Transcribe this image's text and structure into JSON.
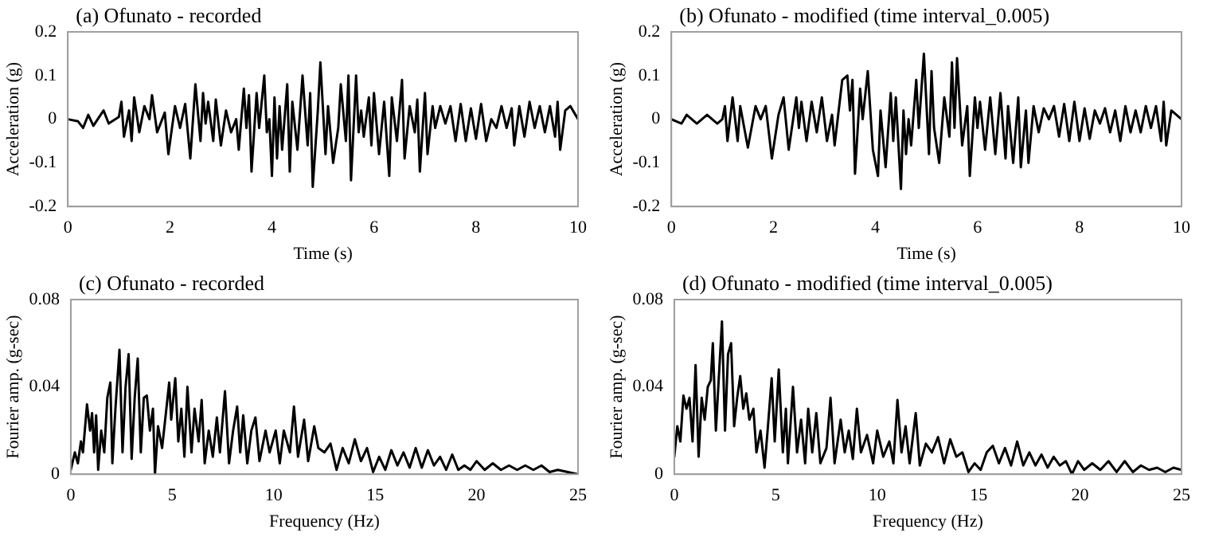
{
  "chart_data": [
    {
      "type": "line",
      "title": "(a) Ofunato - recorded",
      "xlabel": "Time (s)",
      "ylabel": "Acceleration (g)",
      "xlim": [
        0,
        10
      ],
      "xticks": [
        0,
        2,
        4,
        6,
        8,
        10
      ],
      "ylim": [
        -0.2,
        0.2
      ],
      "yticks": [
        -0.2,
        -0.1,
        0,
        0.1,
        0.2
      ],
      "x": [
        0,
        0.2,
        0.3,
        0.4,
        0.5,
        0.7,
        0.8,
        1.0,
        1.05,
        1.1,
        1.2,
        1.25,
        1.3,
        1.4,
        1.5,
        1.6,
        1.65,
        1.75,
        1.9,
        1.97,
        2.1,
        2.2,
        2.3,
        2.4,
        2.5,
        2.6,
        2.65,
        2.7,
        2.75,
        2.85,
        2.9,
        3.0,
        3.1,
        3.2,
        3.3,
        3.35,
        3.45,
        3.5,
        3.55,
        3.6,
        3.7,
        3.75,
        3.85,
        3.9,
        3.95,
        4.0,
        4.05,
        4.1,
        4.15,
        4.2,
        4.3,
        4.35,
        4.4,
        4.5,
        4.6,
        4.7,
        4.75,
        4.8,
        4.9,
        4.95,
        5.05,
        5.1,
        5.2,
        5.3,
        5.35,
        5.45,
        5.5,
        5.55,
        5.65,
        5.7,
        5.75,
        5.8,
        5.9,
        5.95,
        6.0,
        6.1,
        6.2,
        6.3,
        6.35,
        6.45,
        6.55,
        6.6,
        6.7,
        6.8,
        6.85,
        6.9,
        7.0,
        7.05,
        7.15,
        7.2,
        7.3,
        7.4,
        7.5,
        7.6,
        7.7,
        7.8,
        7.9,
        8.0,
        8.1,
        8.2,
        8.3,
        8.4,
        8.5,
        8.6,
        8.7,
        8.75,
        8.85,
        8.95,
        9.05,
        9.15,
        9.25,
        9.35,
        9.45,
        9.55,
        9.6,
        9.65,
        9.75,
        9.85,
        9.95,
        10
      ],
      "series": [
        {
          "color": "#000000",
          "values": [
            0,
            -0.005,
            -0.02,
            0.01,
            -0.015,
            0.02,
            -0.01,
            0.005,
            0.04,
            -0.04,
            0.02,
            -0.05,
            0.05,
            -0.03,
            0.03,
            0.0,
            0.055,
            -0.03,
            0.015,
            -0.08,
            0.03,
            -0.02,
            0.035,
            -0.09,
            0.08,
            -0.05,
            0.06,
            -0.01,
            0.04,
            -0.05,
            0.045,
            -0.06,
            0.02,
            -0.03,
            0.0,
            -0.07,
            0.07,
            -0.02,
            0.055,
            -0.12,
            0.06,
            -0.02,
            0.1,
            -0.03,
            0.0,
            -0.13,
            0.05,
            -0.09,
            0.03,
            -0.07,
            0.08,
            -0.12,
            0.04,
            -0.07,
            0.1,
            -0.06,
            0.06,
            -0.155,
            0.02,
            0.13,
            -0.08,
            0.03,
            -0.1,
            -0.02,
            0.08,
            -0.05,
            0.1,
            -0.14,
            0.1,
            -0.03,
            0.02,
            -0.04,
            0.05,
            -0.06,
            0.06,
            -0.08,
            0.04,
            -0.13,
            0.05,
            -0.05,
            0.09,
            -0.09,
            0.03,
            -0.03,
            0.045,
            -0.12,
            0.06,
            -0.08,
            0.03,
            -0.02,
            0.03,
            -0.01,
            0.03,
            -0.05,
            0.035,
            -0.05,
            0.025,
            -0.045,
            0.035,
            -0.05,
            0.0,
            -0.02,
            0.03,
            -0.02,
            0.025,
            -0.06,
            0.03,
            -0.04,
            0.04,
            -0.02,
            0.03,
            -0.03,
            0.03,
            -0.04,
            0.04,
            -0.07,
            0.02,
            0.03,
            0.01,
            0
          ]
        }
      ]
    },
    {
      "type": "line",
      "title": "(b) Ofunato - modified (time interval_0.005)",
      "xlabel": "Time (s)",
      "ylabel": "Acceleration (g)",
      "xlim": [
        0,
        10
      ],
      "xticks": [
        0,
        2,
        4,
        6,
        8,
        10
      ],
      "ylim": [
        -0.2,
        0.2
      ],
      "yticks": [
        -0.2,
        -0.1,
        0,
        0.1,
        0.2
      ],
      "x": [
        0,
        0.2,
        0.3,
        0.5,
        0.7,
        0.9,
        1.0,
        1.05,
        1.1,
        1.2,
        1.3,
        1.35,
        1.5,
        1.65,
        1.75,
        1.85,
        1.97,
        2.1,
        2.2,
        2.3,
        2.45,
        2.5,
        2.55,
        2.65,
        2.75,
        2.85,
        2.95,
        3.05,
        3.15,
        3.2,
        3.35,
        3.45,
        3.5,
        3.55,
        3.6,
        3.7,
        3.75,
        3.85,
        3.95,
        4.05,
        4.1,
        4.2,
        4.3,
        4.35,
        4.4,
        4.5,
        4.55,
        4.6,
        4.65,
        4.7,
        4.8,
        4.85,
        4.95,
        5.05,
        5.1,
        5.15,
        5.25,
        5.35,
        5.45,
        5.5,
        5.55,
        5.6,
        5.7,
        5.8,
        5.85,
        5.95,
        6.0,
        6.05,
        6.15,
        6.25,
        6.35,
        6.45,
        6.55,
        6.6,
        6.7,
        6.8,
        6.85,
        6.95,
        7.0,
        7.1,
        7.2,
        7.3,
        7.4,
        7.5,
        7.6,
        7.7,
        7.8,
        7.9,
        8.0,
        8.1,
        8.2,
        8.3,
        8.4,
        8.5,
        8.6,
        8.7,
        8.8,
        8.9,
        9.0,
        9.1,
        9.2,
        9.3,
        9.4,
        9.5,
        9.6,
        9.65,
        9.7,
        9.8,
        9.9,
        10
      ],
      "series": [
        {
          "color": "#000000",
          "values": [
            0,
            -0.01,
            0.01,
            -0.01,
            0.01,
            -0.01,
            0.0,
            0.03,
            -0.05,
            0.05,
            -0.05,
            0.03,
            -0.065,
            0.03,
            0.0,
            0.03,
            -0.09,
            0.01,
            0.05,
            -0.07,
            0.05,
            -0.02,
            0.04,
            -0.05,
            0.04,
            -0.03,
            0.05,
            -0.05,
            0.01,
            -0.06,
            0.09,
            0.1,
            0.02,
            0.09,
            -0.125,
            0.07,
            0.0,
            0.11,
            -0.07,
            -0.13,
            0.02,
            -0.11,
            0.06,
            -0.05,
            0.05,
            -0.16,
            0.02,
            -0.08,
            0.0,
            -0.06,
            0.09,
            -0.02,
            0.15,
            -0.08,
            0.11,
            -0.02,
            -0.1,
            0.05,
            -0.04,
            0.13,
            -0.02,
            0.14,
            -0.06,
            0.03,
            -0.13,
            0.05,
            -0.02,
            0.04,
            -0.07,
            0.05,
            -0.08,
            0.06,
            -0.09,
            0.03,
            -0.1,
            0.05,
            -0.11,
            0.02,
            -0.1,
            0.03,
            -0.03,
            0.025,
            0.0,
            0.03,
            -0.04,
            0.035,
            -0.05,
            0.04,
            -0.05,
            0.025,
            -0.045,
            0.02,
            -0.01,
            0.025,
            -0.03,
            0.02,
            -0.05,
            0.03,
            -0.03,
            0.02,
            -0.03,
            0.03,
            -0.02,
            0.03,
            -0.05,
            0.04,
            -0.06,
            0.02,
            0.01,
            0
          ]
        }
      ]
    },
    {
      "type": "line",
      "title": "(c) Ofunato - recorded",
      "xlabel": "Frequency (Hz)",
      "ylabel": "Fourier amp. (g-sec)",
      "xlim": [
        0,
        25
      ],
      "xticks": [
        0,
        5,
        10,
        15,
        20,
        25
      ],
      "ylim": [
        0,
        0.08
      ],
      "yticks": [
        0,
        0.04,
        0.08
      ],
      "x": [
        0,
        0.2,
        0.35,
        0.5,
        0.6,
        0.8,
        0.95,
        1.05,
        1.15,
        1.25,
        1.35,
        1.5,
        1.65,
        1.8,
        1.95,
        2.05,
        2.2,
        2.4,
        2.55,
        2.7,
        2.85,
        3.0,
        3.15,
        3.3,
        3.45,
        3.6,
        3.75,
        3.9,
        4.05,
        4.15,
        4.3,
        4.5,
        4.7,
        4.85,
        4.95,
        5.15,
        5.3,
        5.45,
        5.6,
        5.75,
        5.95,
        6.1,
        6.3,
        6.45,
        6.6,
        6.8,
        7.0,
        7.2,
        7.35,
        7.6,
        7.8,
        8.0,
        8.2,
        8.35,
        8.5,
        8.7,
        8.9,
        9.1,
        9.3,
        9.6,
        9.8,
        10.1,
        10.3,
        10.5,
        10.8,
        11.0,
        11.2,
        11.5,
        11.7,
        12.0,
        12.2,
        12.5,
        12.8,
        13.1,
        13.4,
        13.7,
        14.0,
        14.3,
        14.6,
        14.9,
        15.2,
        15.5,
        15.8,
        16.1,
        16.4,
        16.7,
        17.0,
        17.3,
        17.6,
        17.9,
        18.2,
        18.5,
        18.8,
        19.1,
        19.4,
        19.7,
        20.0,
        20.4,
        20.8,
        21.2,
        21.6,
        22.0,
        22.4,
        22.8,
        23.2,
        23.6,
        24.0,
        24.5,
        25
      ],
      "series": [
        {
          "color": "#000000",
          "values": [
            0.002,
            0.01,
            0.005,
            0.015,
            0.01,
            0.032,
            0.02,
            0.028,
            0.01,
            0.027,
            0.002,
            0.02,
            0.01,
            0.035,
            0.042,
            0.005,
            0.03,
            0.057,
            0.01,
            0.04,
            0.055,
            0.007,
            0.035,
            0.053,
            0.01,
            0.035,
            0.036,
            0.02,
            0.03,
            0.0,
            0.022,
            0.012,
            0.029,
            0.042,
            0.025,
            0.044,
            0.015,
            0.03,
            0.008,
            0.04,
            0.01,
            0.03,
            0.015,
            0.034,
            0.005,
            0.02,
            0.008,
            0.026,
            0.01,
            0.038,
            0.005,
            0.02,
            0.031,
            0.01,
            0.027,
            0.005,
            0.02,
            0.026,
            0.006,
            0.02,
            0.01,
            0.02,
            0.005,
            0.02,
            0.01,
            0.031,
            0.008,
            0.025,
            0.006,
            0.022,
            0.012,
            0.01,
            0.014,
            0.002,
            0.012,
            0.005,
            0.016,
            0.006,
            0.012,
            0.001,
            0.008,
            0.002,
            0.011,
            0.004,
            0.01,
            0.003,
            0.012,
            0.003,
            0.011,
            0.004,
            0.008,
            0.002,
            0.009,
            0.002,
            0.004,
            0.002,
            0.006,
            0.002,
            0.005,
            0.002,
            0.004,
            0.002,
            0.004,
            0.002,
            0.004,
            0.001,
            0.002,
            0.001,
            0
          ]
        }
      ]
    },
    {
      "type": "line",
      "title": "(d) Ofunato - modified (time interval_0.005)",
      "xlabel": "Frequency (Hz)",
      "ylabel": "Fourier amp. (g-sec)",
      "xlim": [
        0,
        25
      ],
      "xticks": [
        0,
        5,
        10,
        15,
        20,
        25
      ],
      "ylim": [
        0,
        0.08
      ],
      "yticks": [
        0,
        0.04,
        0.08
      ],
      "x": [
        0,
        0.15,
        0.3,
        0.45,
        0.6,
        0.75,
        0.9,
        1.05,
        1.2,
        1.35,
        1.5,
        1.65,
        1.8,
        1.9,
        2.05,
        2.2,
        2.35,
        2.5,
        2.65,
        2.8,
        2.95,
        3.1,
        3.25,
        3.4,
        3.55,
        3.7,
        3.9,
        4.05,
        4.25,
        4.45,
        4.6,
        4.8,
        4.95,
        5.15,
        5.35,
        5.5,
        5.6,
        5.85,
        6.05,
        6.25,
        6.45,
        6.6,
        6.8,
        7.0,
        7.2,
        7.5,
        7.7,
        7.9,
        8.2,
        8.4,
        8.6,
        8.8,
        9.0,
        9.2,
        9.5,
        9.8,
        10.0,
        10.3,
        10.6,
        10.8,
        11.0,
        11.2,
        11.4,
        11.6,
        11.9,
        12.1,
        12.4,
        12.7,
        13.0,
        13.3,
        13.6,
        13.9,
        14.2,
        14.5,
        14.8,
        15.1,
        15.4,
        15.7,
        16.0,
        16.3,
        16.6,
        16.9,
        17.2,
        17.5,
        17.8,
        18.1,
        18.4,
        18.7,
        19.0,
        19.3,
        19.6,
        19.9,
        20.2,
        20.6,
        21.0,
        21.4,
        21.8,
        22.2,
        22.6,
        23.0,
        23.4,
        23.8,
        24.2,
        24.6,
        25
      ],
      "series": [
        {
          "color": "#000000",
          "values": [
            0.008,
            0.022,
            0.015,
            0.036,
            0.03,
            0.035,
            0.015,
            0.05,
            0.008,
            0.035,
            0.025,
            0.04,
            0.043,
            0.06,
            0.02,
            0.045,
            0.07,
            0.02,
            0.055,
            0.06,
            0.022,
            0.035,
            0.045,
            0.03,
            0.037,
            0.025,
            0.03,
            0.01,
            0.02,
            0.003,
            0.02,
            0.044,
            0.015,
            0.048,
            0.01,
            0.03,
            0.005,
            0.04,
            0.01,
            0.025,
            0.005,
            0.03,
            0.01,
            0.028,
            0.005,
            0.012,
            0.035,
            0.005,
            0.025,
            0.01,
            0.02,
            0.007,
            0.03,
            0.01,
            0.018,
            0.005,
            0.02,
            0.008,
            0.015,
            0.005,
            0.034,
            0.01,
            0.022,
            0.005,
            0.028,
            0.004,
            0.014,
            0.01,
            0.017,
            0.005,
            0.016,
            0.008,
            0.01,
            0.001,
            0.005,
            0.002,
            0.01,
            0.013,
            0.005,
            0.012,
            0.004,
            0.015,
            0.004,
            0.01,
            0.004,
            0.009,
            0.003,
            0.008,
            0.004,
            0.006,
            0.0,
            0.006,
            0.002,
            0.005,
            0.002,
            0.006,
            0.001,
            0.006,
            0.001,
            0.004,
            0.002,
            0.003,
            0.001,
            0.003,
            0.002
          ]
        }
      ]
    }
  ]
}
